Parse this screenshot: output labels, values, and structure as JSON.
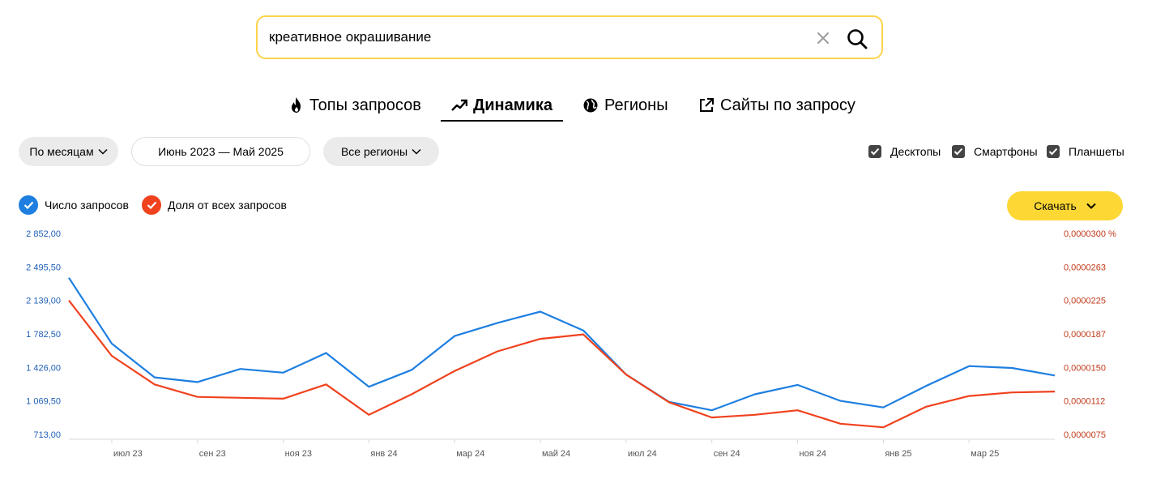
{
  "search": {
    "query": "креативное окрашивание"
  },
  "tabs": [
    {
      "label": "Топы запросов",
      "icon": "fire-icon"
    },
    {
      "label": "Динамика",
      "icon": "trend-up-icon",
      "active": true
    },
    {
      "label": "Регионы",
      "icon": "globe-icon"
    },
    {
      "label": "Сайты по запросу",
      "icon": "external-link-icon"
    }
  ],
  "filters": {
    "period": "По месяцам",
    "range": "Июнь 2023 — Май 2025",
    "region": "Все регионы"
  },
  "devices": [
    {
      "label": "Десктопы",
      "checked": true
    },
    {
      "label": "Смартфоны",
      "checked": true
    },
    {
      "label": "Планшеты",
      "checked": true
    }
  ],
  "legend": [
    {
      "label": "Число запросов",
      "color": "#1e7fe0"
    },
    {
      "label": "Доля от всех запросов",
      "color": "#f0421e"
    }
  ],
  "download": {
    "label": "Скачать"
  },
  "chart_data": {
    "type": "line",
    "months": [
      "2023-06",
      "2023-07",
      "2023-08",
      "2023-09",
      "2023-10",
      "2023-11",
      "2023-12",
      "2024-01",
      "2024-02",
      "2024-03",
      "2024-04",
      "2024-05",
      "2024-06",
      "2024-07",
      "2024-08",
      "2024-09",
      "2024-10",
      "2024-11",
      "2024-12",
      "2025-01",
      "2025-02",
      "2025-03",
      "2025-04",
      "2025-05"
    ],
    "x_tick_labels": [
      {
        "month": "2023-07",
        "label": "июл 23"
      },
      {
        "month": "2023-09",
        "label": "сен 23"
      },
      {
        "month": "2023-11",
        "label": "ноя 23"
      },
      {
        "month": "2024-01",
        "label": "янв 24"
      },
      {
        "month": "2024-03",
        "label": "мар 24"
      },
      {
        "month": "2024-05",
        "label": "май 24"
      },
      {
        "month": "2024-07",
        "label": "июл 24"
      },
      {
        "month": "2024-09",
        "label": "сен 24"
      },
      {
        "month": "2024-11",
        "label": "ноя 24"
      },
      {
        "month": "2025-01",
        "label": "янв 25"
      },
      {
        "month": "2025-03",
        "label": "мар 25"
      }
    ],
    "y_left": {
      "range": [
        713.0,
        2852.0
      ],
      "ticks": [
        "2 852,00",
        "2 495,50",
        "2 139,00",
        "1 782,50",
        "1 426,00",
        "1 069,50",
        "713,00"
      ],
      "color": "#1f5fb8"
    },
    "y_right": {
      "range": [
        7.5e-06,
        3e-05
      ],
      "ticks": [
        "0,0000300 %",
        "0,0000263",
        "0,0000225",
        "0,0000187",
        "0,0000150",
        "0,0000112",
        "0,0000075"
      ],
      "color": "#c13a1a"
    },
    "series": [
      {
        "name": "Число запросов",
        "axis": "left",
        "color": "#1e7fe0",
        "values": [
          2380,
          1680,
          1320,
          1270,
          1410,
          1370,
          1580,
          1220,
          1400,
          1760,
          1900,
          2020,
          1820,
          1350,
          1060,
          970,
          1140,
          1240,
          1070,
          1000,
          1230,
          1440,
          1420,
          1340
        ]
      },
      {
        "name": "Доля от всех запросов",
        "axis": "right",
        "color": "#f0421e",
        "values": [
          2.25e-05,
          1.63e-05,
          1.31e-05,
          1.17e-05,
          1.16e-05,
          1.15e-05,
          1.31e-05,
          9.7e-06,
          1.2e-05,
          1.46e-05,
          1.68e-05,
          1.82e-05,
          1.87e-05,
          1.42e-05,
          1.11e-05,
          9.4e-06,
          9.7e-06,
          1.02e-05,
          8.7e-06,
          8.3e-06,
          1.06e-05,
          1.18e-05,
          1.22e-05,
          1.23e-05
        ]
      }
    ]
  }
}
